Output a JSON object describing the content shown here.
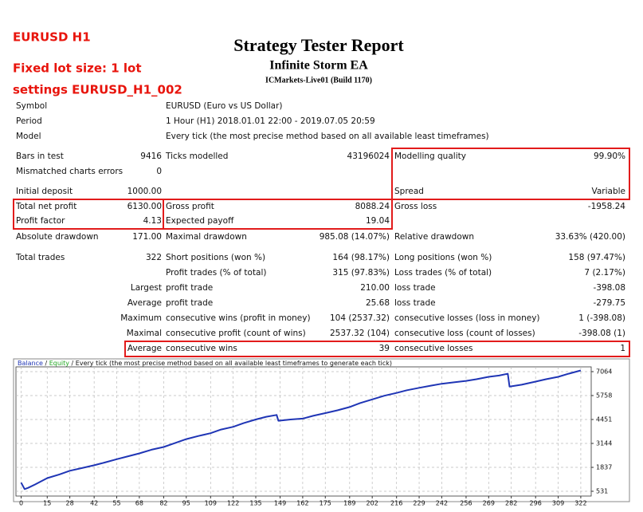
{
  "notes": [
    "EURUSD H1",
    "Fixed lot size: 1 lot",
    "settings EURUSD_H1_002"
  ],
  "header": {
    "title": "Strategy Tester Report",
    "subtitle": "Infinite Storm EA",
    "server": "ICMarkets-Live01 (Build 1170)"
  },
  "report": {
    "rows": [
      [
        "Symbol",
        null,
        "EURUSD (Euro vs US Dollar)"
      ],
      [
        "Period",
        null,
        "1 Hour (H1) 2018.01.01 22:00 - 2019.07.05 20:59"
      ],
      [
        "Model",
        null,
        "Every tick (the most precise method based on all available least timeframes)"
      ],
      [
        "Bars in test",
        "9416",
        "Ticks modelled",
        "43196024",
        "Modelling quality",
        "99.90%"
      ],
      [
        "Mismatched charts errors",
        "0"
      ],
      [
        "Initial deposit",
        "1000.00",
        null,
        null,
        "Spread",
        "Variable"
      ],
      [
        "Total net profit",
        "6130.00",
        "Gross profit",
        "8088.24",
        "Gross loss",
        "-1958.24"
      ],
      [
        "Profit factor",
        "4.13",
        "Expected payoff",
        "19.04"
      ],
      [
        "Absolute drawdown",
        "171.00",
        "Maximal drawdown",
        "985.08 (14.07%)",
        "Relative drawdown",
        "33.63% (420.00)"
      ],
      [
        "Total trades",
        "322",
        "Short positions (won %)",
        "164 (98.17%)",
        "Long positions (won %)",
        "158 (97.47%)"
      ],
      [
        null,
        null,
        "Profit trades (% of total)",
        "315 (97.83%)",
        "Loss trades (% of total)",
        "7 (2.17%)"
      ],
      [
        null,
        "Largest",
        "profit trade",
        "210.00",
        "loss trade",
        "-398.08"
      ],
      [
        null,
        "Average",
        "profit trade",
        "25.68",
        "loss trade",
        "-279.75"
      ],
      [
        null,
        "Maximum",
        "consecutive wins (profit in money)",
        "104 (2537.32)",
        "consecutive losses (loss in money)",
        "1 (-398.08)"
      ],
      [
        null,
        "Maximal",
        "consecutive profit (count of wins)",
        "2537.32 (104)",
        "consecutive loss (count of losses)",
        "-398.08 (1)"
      ],
      [
        null,
        "Average",
        "consecutive wins",
        "39",
        "consecutive losses",
        "1"
      ]
    ]
  },
  "chart_data": {
    "type": "line",
    "separator": "/",
    "equity_label": "Equity",
    "note": "Every tick (the most precise method based on all available least timeframes to generate each tick)",
    "x": [
      0,
      2,
      4,
      8,
      15,
      22,
      28,
      35,
      42,
      48,
      55,
      62,
      68,
      75,
      82,
      88,
      95,
      102,
      109,
      115,
      122,
      128,
      135,
      141,
      147,
      148,
      155,
      162,
      168,
      175,
      182,
      189,
      195,
      202,
      209,
      216,
      222,
      229,
      236,
      242,
      249,
      256,
      262,
      269,
      275,
      280,
      281,
      288,
      296,
      302,
      309,
      315,
      322
    ],
    "series": [
      {
        "name": "Balance",
        "color": "#1f35b5",
        "values": [
          1000,
          650,
          720,
          900,
          1250,
          1450,
          1650,
          1800,
          1950,
          2100,
          2280,
          2450,
          2600,
          2800,
          2950,
          3150,
          3380,
          3550,
          3700,
          3900,
          4050,
          4250,
          4450,
          4600,
          4700,
          4380,
          4450,
          4500,
          4650,
          4800,
          4950,
          5130,
          5350,
          5550,
          5750,
          5900,
          6050,
          6180,
          6300,
          6400,
          6480,
          6560,
          6650,
          6780,
          6850,
          6950,
          6250,
          6350,
          6520,
          6650,
          6780,
          6950,
          7130
        ]
      }
    ],
    "equity_color": "#22a822",
    "xlim": [
      -3,
      328
    ],
    "xticks": [
      0,
      15,
      28,
      42,
      55,
      68,
      82,
      95,
      109,
      122,
      135,
      149,
      162,
      175,
      189,
      202,
      216,
      229,
      242,
      256,
      269,
      282,
      296,
      309,
      322
    ],
    "ylim": [
      270,
      7325
    ],
    "yticks": [
      531,
      1837,
      3144,
      4451,
      5758,
      7064
    ],
    "grid": true
  }
}
